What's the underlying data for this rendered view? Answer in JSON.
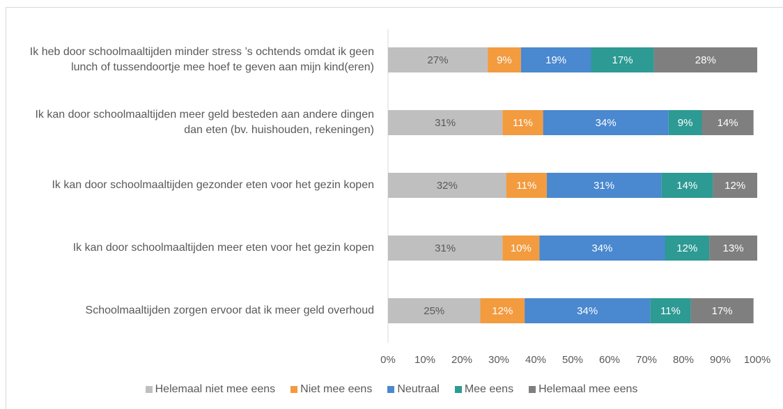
{
  "chart_data": {
    "type": "stacked_bar_horizontal",
    "categories": [
      "Ik heb door schoolmaaltijden minder stress ’s ochtends omdat ik geen lunch of tussendoortje mee hoef te geven aan mijn kind(eren)",
      "Ik kan door schoolmaaltijden meer geld besteden aan andere dingen dan eten (bv. huishouden, rekeningen)",
      "Ik kan door schoolmaaltijden gezonder eten voor het gezin kopen",
      "Ik kan door schoolmaaltijden meer eten voor het gezin kopen",
      "Schoolmaaltijden zorgen ervoor dat ik meer geld overhoud"
    ],
    "series": [
      {
        "name": "Helemaal niet mee eens",
        "color": "#bfbfbf",
        "values": [
          27,
          31,
          32,
          31,
          25
        ],
        "value_labels": [
          "27%",
          "31%",
          "32%",
          "31%",
          "25%"
        ]
      },
      {
        "name": "Niet mee eens",
        "color": "#f39b3f",
        "values": [
          9,
          11,
          11,
          10,
          12
        ],
        "value_labels": [
          "9%",
          "11%",
          "11%",
          "10%",
          "12%"
        ]
      },
      {
        "name": "Neutraal",
        "color": "#4a88d0",
        "values": [
          19,
          34,
          31,
          34,
          34
        ],
        "value_labels": [
          "19%",
          "34%",
          "31%",
          "34%",
          "34%"
        ]
      },
      {
        "name": "Mee eens",
        "color": "#2d9a94",
        "values": [
          17,
          9,
          14,
          12,
          11
        ],
        "value_labels": [
          "17%",
          "9%",
          "14%",
          "12%",
          "11%"
        ]
      },
      {
        "name": "Helemaal mee eens",
        "color": "#7f7f7f",
        "values": [
          28,
          14,
          12,
          13,
          17
        ],
        "value_labels": [
          "28%",
          "14%",
          "12%",
          "13%",
          "17%"
        ]
      }
    ],
    "xlim": [
      0,
      100
    ],
    "xticks": [
      {
        "value": 0,
        "label": "0%"
      },
      {
        "value": 10,
        "label": "10%"
      },
      {
        "value": 20,
        "label": "20%"
      },
      {
        "value": 30,
        "label": "30%"
      },
      {
        "value": 40,
        "label": "40%"
      },
      {
        "value": 50,
        "label": "50%"
      },
      {
        "value": 60,
        "label": "60%"
      },
      {
        "value": 70,
        "label": "70%"
      },
      {
        "value": 80,
        "label": "80%"
      },
      {
        "value": 90,
        "label": "90%"
      },
      {
        "value": 100,
        "label": "100%"
      }
    ],
    "legend": "bottom"
  }
}
